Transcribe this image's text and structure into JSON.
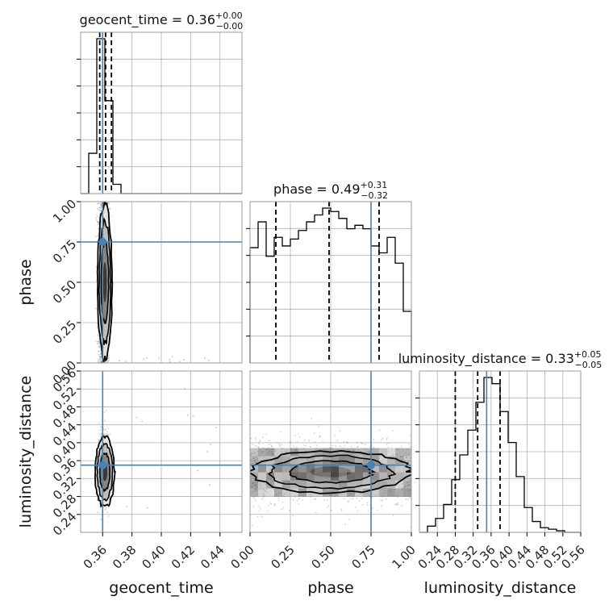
{
  "chart_data": {
    "type": "corner",
    "parameters": [
      {
        "name": "geocent_time",
        "axis_label": "geocent_time",
        "title_lhs": "geocent_time = 0.36",
        "title_sup": "+0.00",
        "title_sub": "−0.00",
        "range": [
          0.345,
          0.455
        ],
        "ticks": [
          0.36,
          0.38,
          0.4,
          0.42,
          0.44
        ],
        "tick_labels": [
          "0.36",
          "0.38",
          "0.40",
          "0.42",
          "0.44"
        ],
        "truth": 0.36,
        "quantiles": [
          0.358,
          0.362,
          0.366
        ],
        "hist_edges": [
          0.345,
          0.3505,
          0.356,
          0.3615,
          0.367,
          0.3725,
          0.378,
          0.3835,
          0.389,
          0.3945,
          0.4,
          0.4055,
          0.411,
          0.4165,
          0.422,
          0.4275,
          0.433,
          0.4385,
          0.444,
          0.4495,
          0.455
        ],
        "hist_counts": [
          0.0,
          0.26,
          1.0,
          0.6,
          0.06,
          0.0,
          0.0,
          0.0,
          0.0,
          0.0,
          0.0,
          0.0,
          0.0,
          0.0,
          0.0,
          0.0,
          0.0,
          0.0,
          0.0,
          0.0
        ]
      },
      {
        "name": "phase",
        "axis_label": "phase",
        "title_lhs": "phase = 0.49",
        "title_sup": "+0.31",
        "title_sub": "−0.32",
        "range": [
          0.0,
          1.0
        ],
        "ticks": [
          0.0,
          0.25,
          0.5,
          0.75,
          1.0
        ],
        "tick_labels": [
          "0.00",
          "0.25",
          "0.50",
          "0.75",
          "1.00"
        ],
        "truth": 0.75,
        "quantiles": [
          0.16,
          0.49,
          0.8
        ],
        "hist_edges": [
          0,
          0.05,
          0.1,
          0.15,
          0.2,
          0.25,
          0.3,
          0.35,
          0.4,
          0.45,
          0.5,
          0.55,
          0.6,
          0.65,
          0.7,
          0.75,
          0.8,
          0.85,
          0.9,
          0.95,
          1.0
        ],
        "hist_counts": [
          0.67,
          0.82,
          0.62,
          0.73,
          0.68,
          0.72,
          0.77,
          0.82,
          0.86,
          0.9,
          0.88,
          0.84,
          0.78,
          0.8,
          0.78,
          0.68,
          0.64,
          0.73,
          0.58,
          0.3
        ]
      },
      {
        "name": "luminosity_distance",
        "axis_label": "luminosity_distance",
        "title_lhs": "luminosity_distance = 0.33",
        "title_sup": "+0.05",
        "title_sub": "−0.05",
        "range": [
          0.2,
          0.56
        ],
        "ticks": [
          0.24,
          0.28,
          0.32,
          0.36,
          0.4,
          0.44,
          0.48,
          0.52,
          0.56
        ],
        "tick_labels": [
          "0.24",
          "0.28",
          "0.32",
          "0.36",
          "0.40",
          "0.44",
          "0.48",
          "0.52",
          "0.56"
        ],
        "truth": 0.35,
        "quantiles": [
          0.28,
          0.33,
          0.38
        ],
        "hist_edges": [
          0.2,
          0.218,
          0.236,
          0.254,
          0.272,
          0.29,
          0.308,
          0.326,
          0.344,
          0.362,
          0.38,
          0.398,
          0.416,
          0.434,
          0.452,
          0.47,
          0.488,
          0.506,
          0.524,
          0.542,
          0.56
        ],
        "hist_counts": [
          0.0,
          0.04,
          0.09,
          0.18,
          0.34,
          0.5,
          0.66,
          0.84,
          1.0,
          0.96,
          0.78,
          0.58,
          0.36,
          0.16,
          0.07,
          0.03,
          0.02,
          0.01,
          0.0,
          0.0
        ]
      }
    ],
    "grid": true,
    "truth_color": "#4682b4",
    "hist_color": "#000000",
    "scatter_color": "#333333"
  }
}
